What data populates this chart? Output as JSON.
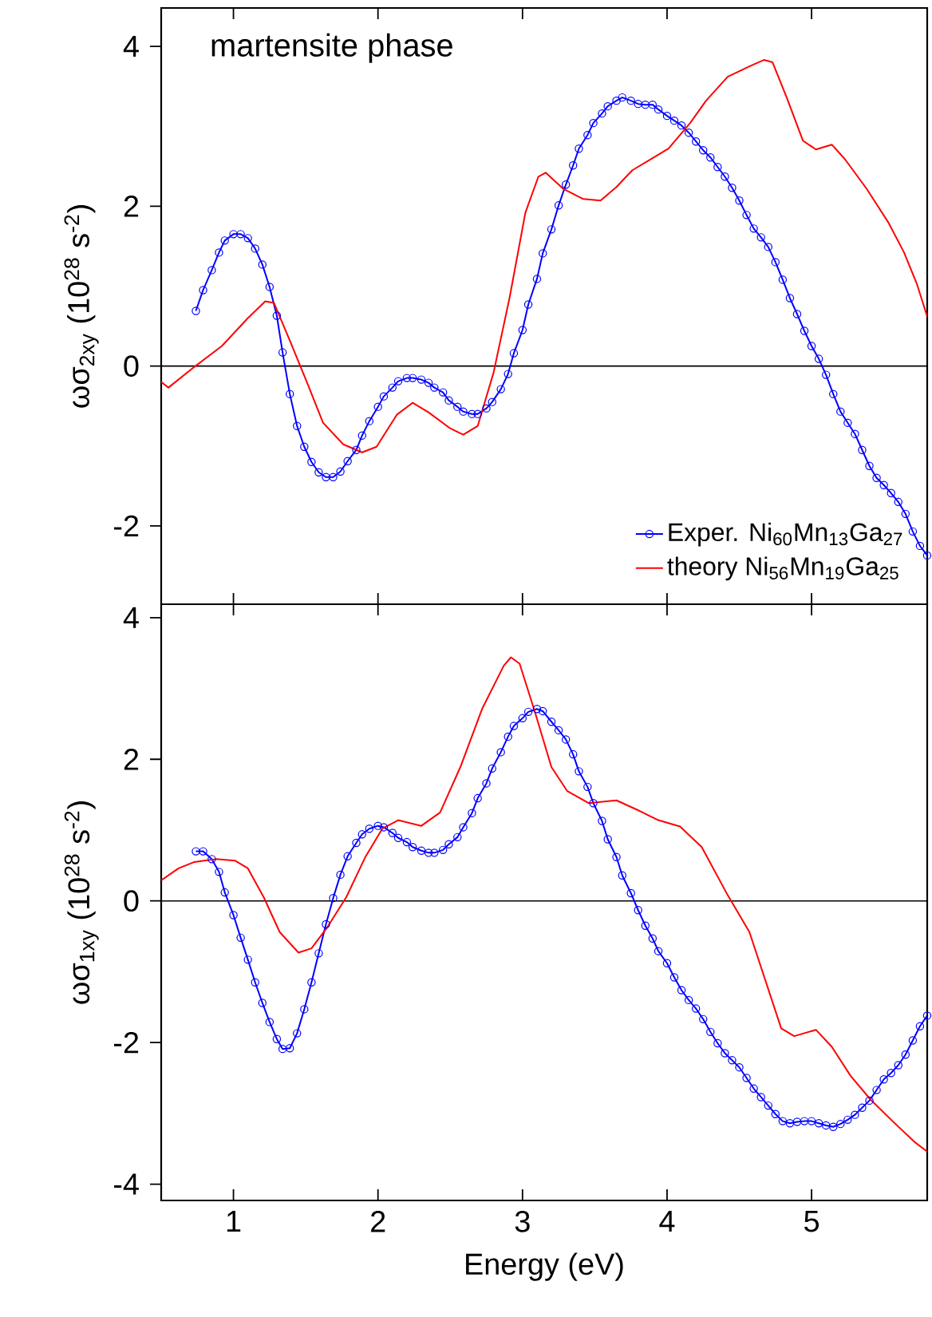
{
  "chart_data": [
    {
      "type": "line",
      "ylabel": "ωσ$_{2xy}$ (10$^{28}$ s$^{-2}$)",
      "annotations": [
        "martensite phase"
      ],
      "xlim": [
        0.5,
        5.8
      ],
      "ylim": [
        -2.98,
        4.48
      ],
      "xticks": [
        1,
        2,
        3,
        4,
        5
      ],
      "yticks": [
        -2,
        0,
        2,
        4
      ],
      "tick_labels": "y",
      "legend": "bottom right",
      "ref_lines": [
        {
          "axis": "y",
          "value": 0,
          "color": "#000000"
        }
      ],
      "series": [
        {
          "name": "Exper. Ni$_{60}$Mn$_{13}$Ga$_{27}$",
          "color": "#0000ff",
          "marker": "circle",
          "x": [
            0.74,
            0.79,
            0.85,
            0.9,
            0.94,
            1.0,
            1.05,
            1.1,
            1.15,
            1.2,
            1.25,
            1.3,
            1.34,
            1.39,
            1.44,
            1.49,
            1.54,
            1.59,
            1.64,
            1.69,
            1.74,
            1.79,
            1.85,
            1.89,
            1.94,
            2.0,
            2.04,
            2.1,
            2.14,
            2.2,
            2.24,
            2.3,
            2.35,
            2.39,
            2.45,
            2.49,
            2.55,
            2.59,
            2.65,
            2.69,
            2.75,
            2.79,
            2.85,
            2.9,
            2.94,
            3.0,
            3.04,
            3.1,
            3.14,
            3.2,
            3.25,
            3.3,
            3.35,
            3.39,
            3.45,
            3.49,
            3.55,
            3.59,
            3.65,
            3.69,
            3.75,
            3.8,
            3.85,
            3.9,
            3.94,
            4.0,
            4.05,
            4.1,
            4.15,
            4.2,
            4.25,
            4.3,
            4.35,
            4.4,
            4.45,
            4.5,
            4.55,
            4.6,
            4.65,
            4.7,
            4.75,
            4.8,
            4.85,
            4.9,
            4.95,
            5.0,
            5.05,
            5.1,
            5.15,
            5.2,
            5.25,
            5.3,
            5.35,
            5.4,
            5.45,
            5.5,
            5.55,
            5.6,
            5.65,
            5.7,
            5.75,
            5.8
          ],
          "values": [
            0.69,
            0.95,
            1.2,
            1.42,
            1.57,
            1.65,
            1.65,
            1.6,
            1.47,
            1.27,
            0.99,
            0.63,
            0.17,
            -0.35,
            -0.75,
            -1.01,
            -1.2,
            -1.33,
            -1.39,
            -1.39,
            -1.32,
            -1.19,
            -1.05,
            -0.87,
            -0.69,
            -0.51,
            -0.38,
            -0.27,
            -0.19,
            -0.15,
            -0.15,
            -0.17,
            -0.21,
            -0.27,
            -0.33,
            -0.43,
            -0.51,
            -0.57,
            -0.6,
            -0.6,
            -0.53,
            -0.45,
            -0.29,
            -0.1,
            0.16,
            0.45,
            0.77,
            1.09,
            1.41,
            1.71,
            2.01,
            2.27,
            2.51,
            2.72,
            2.89,
            3.04,
            3.16,
            3.25,
            3.32,
            3.36,
            3.32,
            3.28,
            3.27,
            3.27,
            3.21,
            3.13,
            3.07,
            3.01,
            2.92,
            2.81,
            2.7,
            2.61,
            2.49,
            2.37,
            2.23,
            2.07,
            1.89,
            1.72,
            1.61,
            1.49,
            1.3,
            1.08,
            0.85,
            0.65,
            0.44,
            0.25,
            0.09,
            -0.11,
            -0.35,
            -0.57,
            -0.71,
            -0.85,
            -1.05,
            -1.25,
            -1.4,
            -1.49,
            -1.59,
            -1.7,
            -1.85,
            -2.07,
            -2.25,
            -2.37
          ]
        },
        {
          "name": "theory Ni$_{56}$Mn$_{19}$Ga$_{25}$",
          "color": "#ff0000",
          "marker": "none",
          "x": [
            0.5,
            0.55,
            0.73,
            0.92,
            1.1,
            1.22,
            1.28,
            1.39,
            1.51,
            1.62,
            1.76,
            1.89,
            1.99,
            2.13,
            2.24,
            2.35,
            2.5,
            2.59,
            2.69,
            2.8,
            2.91,
            3.02,
            3.11,
            3.16,
            3.28,
            3.42,
            3.54,
            3.65,
            3.76,
            3.9,
            4.01,
            4.16,
            4.27,
            4.42,
            4.57,
            4.67,
            4.73,
            4.83,
            4.94,
            5.03,
            5.14,
            5.23,
            5.38,
            5.53,
            5.64,
            5.73,
            5.8
          ],
          "values": [
            -0.2,
            -0.27,
            -0.01,
            0.25,
            0.6,
            0.81,
            0.79,
            0.32,
            -0.21,
            -0.71,
            -0.98,
            -1.08,
            -1.01,
            -0.61,
            -0.46,
            -0.58,
            -0.78,
            -0.86,
            -0.75,
            -0.08,
            0.85,
            1.92,
            2.37,
            2.42,
            2.22,
            2.09,
            2.07,
            2.24,
            2.45,
            2.6,
            2.72,
            3.04,
            3.32,
            3.62,
            3.75,
            3.83,
            3.8,
            3.35,
            2.82,
            2.71,
            2.77,
            2.59,
            2.22,
            1.8,
            1.42,
            1.02,
            0.62
          ]
        }
      ]
    },
    {
      "type": "line",
      "xlabel": "Energy (eV)",
      "ylabel": "ωσ$_{1xy}$ (10$^{28}$ s$^{-2}$)",
      "xlim": [
        0.5,
        5.8
      ],
      "ylim": [
        -4.23,
        4.19
      ],
      "xticks": [
        1,
        2,
        3,
        4,
        5
      ],
      "yticks": [
        -4,
        -2,
        0,
        2,
        4
      ],
      "ref_lines": [
        {
          "axis": "y",
          "value": 0,
          "color": "#000000"
        }
      ],
      "series": [
        {
          "color": "#0000ff",
          "marker": "circle",
          "x": [
            0.74,
            0.79,
            0.85,
            0.9,
            0.94,
            1.0,
            1.05,
            1.1,
            1.15,
            1.2,
            1.25,
            1.3,
            1.34,
            1.39,
            1.44,
            1.49,
            1.54,
            1.59,
            1.64,
            1.69,
            1.74,
            1.79,
            1.85,
            1.89,
            1.94,
            2.0,
            2.04,
            2.1,
            2.14,
            2.2,
            2.24,
            2.3,
            2.35,
            2.39,
            2.45,
            2.49,
            2.55,
            2.59,
            2.65,
            2.69,
            2.75,
            2.79,
            2.85,
            2.9,
            2.94,
            3.0,
            3.04,
            3.1,
            3.14,
            3.2,
            3.25,
            3.3,
            3.35,
            3.39,
            3.45,
            3.49,
            3.55,
            3.59,
            3.65,
            3.69,
            3.75,
            3.8,
            3.85,
            3.9,
            3.94,
            4.0,
            4.05,
            4.1,
            4.15,
            4.2,
            4.25,
            4.3,
            4.35,
            4.4,
            4.45,
            4.5,
            4.55,
            4.6,
            4.65,
            4.7,
            4.75,
            4.8,
            4.85,
            4.9,
            4.95,
            5.0,
            5.05,
            5.1,
            5.15,
            5.2,
            5.25,
            5.3,
            5.35,
            5.4,
            5.45,
            5.5,
            5.55,
            5.6,
            5.65,
            5.7,
            5.75,
            5.8
          ],
          "values": [
            0.7,
            0.7,
            0.59,
            0.41,
            0.12,
            -0.2,
            -0.52,
            -0.83,
            -1.15,
            -1.44,
            -1.71,
            -1.95,
            -2.09,
            -2.08,
            -1.87,
            -1.53,
            -1.15,
            -0.74,
            -0.33,
            0.04,
            0.37,
            0.63,
            0.82,
            0.94,
            1.02,
            1.06,
            1.04,
            0.96,
            0.89,
            0.83,
            0.76,
            0.71,
            0.68,
            0.68,
            0.72,
            0.8,
            0.9,
            1.04,
            1.24,
            1.45,
            1.66,
            1.87,
            2.1,
            2.32,
            2.47,
            2.58,
            2.67,
            2.71,
            2.68,
            2.53,
            2.41,
            2.28,
            2.07,
            1.83,
            1.61,
            1.38,
            1.13,
            0.87,
            0.62,
            0.36,
            0.11,
            -0.13,
            -0.35,
            -0.53,
            -0.71,
            -0.88,
            -1.08,
            -1.26,
            -1.4,
            -1.52,
            -1.67,
            -1.85,
            -2.01,
            -2.15,
            -2.25,
            -2.35,
            -2.5,
            -2.65,
            -2.77,
            -2.89,
            -3.01,
            -3.11,
            -3.14,
            -3.12,
            -3.11,
            -3.11,
            -3.14,
            -3.17,
            -3.19,
            -3.15,
            -3.09,
            -3.02,
            -2.92,
            -2.82,
            -2.67,
            -2.52,
            -2.43,
            -2.32,
            -2.17,
            -1.97,
            -1.77,
            -1.62
          ]
        },
        {
          "color": "#ff0000",
          "marker": "none",
          "x": [
            0.5,
            0.62,
            0.73,
            0.88,
            1.01,
            1.1,
            1.21,
            1.32,
            1.45,
            1.54,
            1.65,
            1.78,
            1.91,
            2.03,
            2.14,
            2.3,
            2.43,
            2.57,
            2.72,
            2.87,
            2.92,
            2.98,
            3.09,
            3.2,
            3.31,
            3.46,
            3.65,
            3.79,
            3.94,
            4.09,
            4.24,
            4.42,
            4.57,
            4.68,
            4.79,
            4.88,
            5.03,
            5.14,
            5.27,
            5.41,
            5.56,
            5.71,
            5.8
          ],
          "values": [
            0.29,
            0.46,
            0.55,
            0.59,
            0.57,
            0.46,
            0.05,
            -0.44,
            -0.73,
            -0.67,
            -0.37,
            0.05,
            0.61,
            1.02,
            1.14,
            1.06,
            1.25,
            1.89,
            2.71,
            3.32,
            3.44,
            3.35,
            2.64,
            1.89,
            1.55,
            1.38,
            1.42,
            1.29,
            1.14,
            1.05,
            0.76,
            0.08,
            -0.44,
            -1.12,
            -1.8,
            -1.91,
            -1.82,
            -2.06,
            -2.47,
            -2.81,
            -3.11,
            -3.4,
            -3.54
          ]
        }
      ]
    }
  ]
}
